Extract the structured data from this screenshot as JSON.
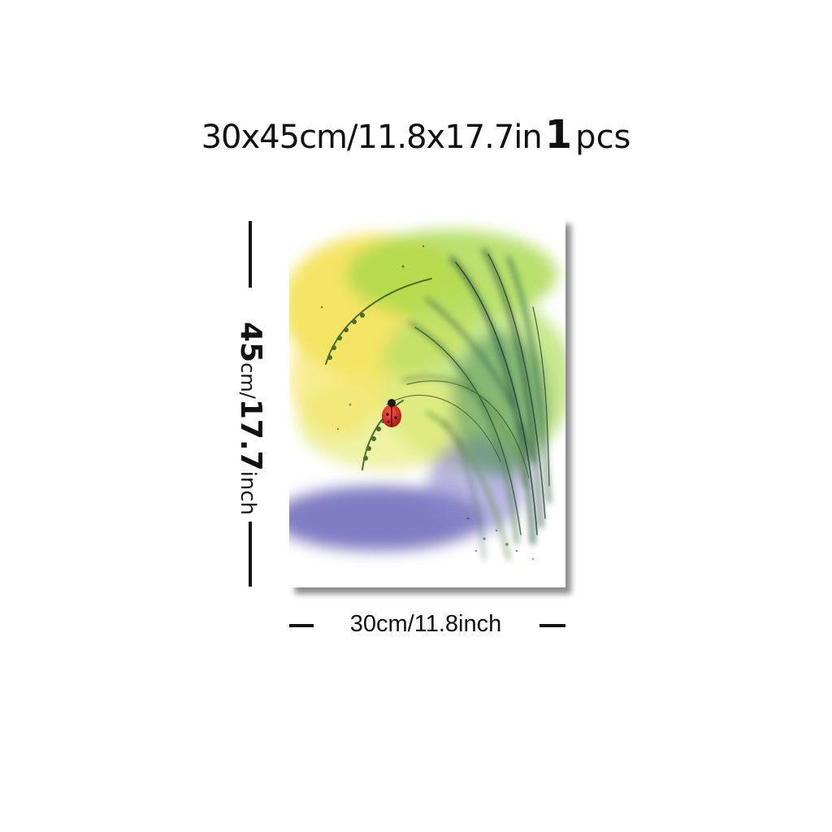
{
  "title": {
    "size_text": "30x45cm/11.8x17.7in",
    "quantity": "1",
    "unit": "pcs"
  },
  "dimensions": {
    "height_number": "45",
    "height_unit": "cm/",
    "height_inch": "17.7",
    "height_inch_unit": "inch",
    "width_label": "30cm/11.8inch"
  },
  "colors": {
    "background": "#ffffff",
    "text": "#111111",
    "yellow_wash": "#f2e14a",
    "green_wash": "#a9d84a",
    "purple_wash": "#6b66b8",
    "grass_dark": "#2f5a46",
    "ladybug": "#d8231f"
  },
  "artwork": {
    "subject": "watercolor-grass-ladybug"
  }
}
